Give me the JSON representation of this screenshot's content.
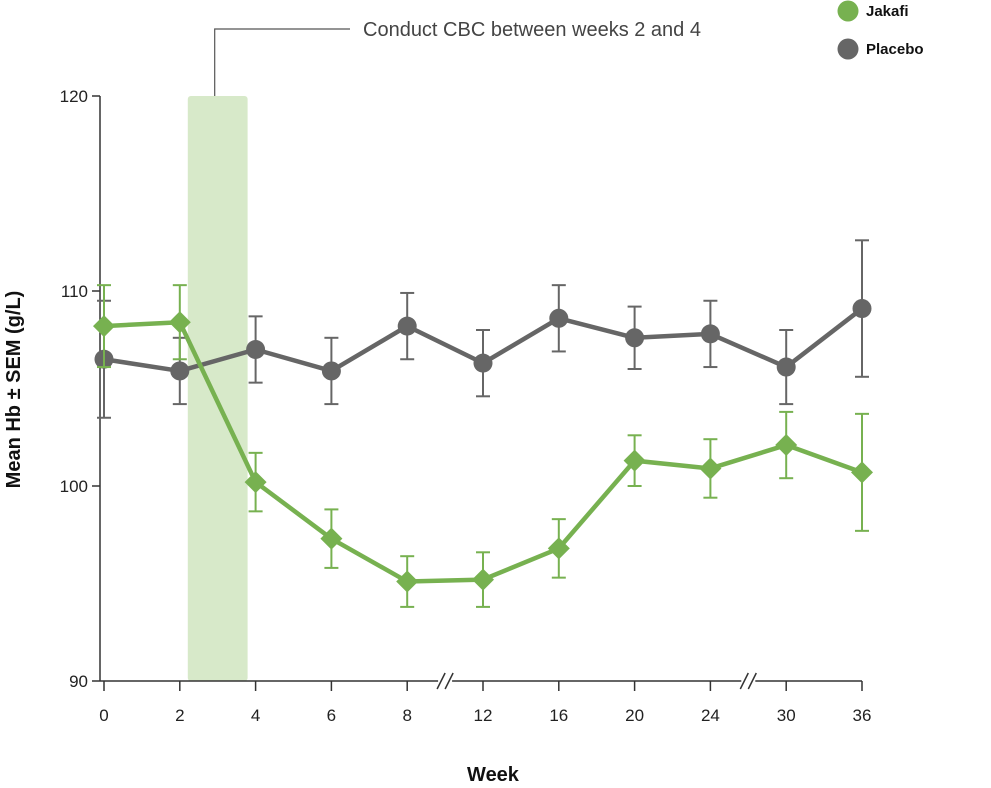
{
  "chart_data": {
    "type": "line",
    "annotation": "Conduct CBC between weeks 2 and 4",
    "xlabel": "Week",
    "ylabel": "Mean Hb ± SEM (g/L)",
    "categories": [
      "0",
      "2",
      "4",
      "6",
      "8",
      "12",
      "16",
      "20",
      "24",
      "30",
      "36"
    ],
    "ylim": [
      90,
      120
    ],
    "yticks": [
      "90",
      "100",
      "110",
      "120"
    ],
    "axis_breaks_after_index": [
      4,
      8
    ],
    "highlight_x_range": [
      "2",
      "4"
    ],
    "grid": false,
    "legend_position": "top-right",
    "series": [
      {
        "name": "Jakafi",
        "color": "#77b150",
        "marker": "diamond",
        "values": [
          108.2,
          108.4,
          100.2,
          97.3,
          95.1,
          95.2,
          96.8,
          101.3,
          100.9,
          102.1,
          100.7
        ],
        "errors": [
          2.1,
          1.9,
          1.5,
          1.5,
          1.3,
          1.4,
          1.5,
          1.3,
          1.5,
          1.7,
          3.0
        ]
      },
      {
        "name": "Placebo",
        "color": "#666666",
        "marker": "circle",
        "values": [
          106.5,
          105.9,
          107.0,
          105.9,
          108.2,
          106.3,
          108.6,
          107.6,
          107.8,
          106.1,
          109.1
        ],
        "errors": [
          3.0,
          1.7,
          1.7,
          1.7,
          1.7,
          1.7,
          1.7,
          1.6,
          1.7,
          1.9,
          3.5
        ]
      }
    ]
  }
}
